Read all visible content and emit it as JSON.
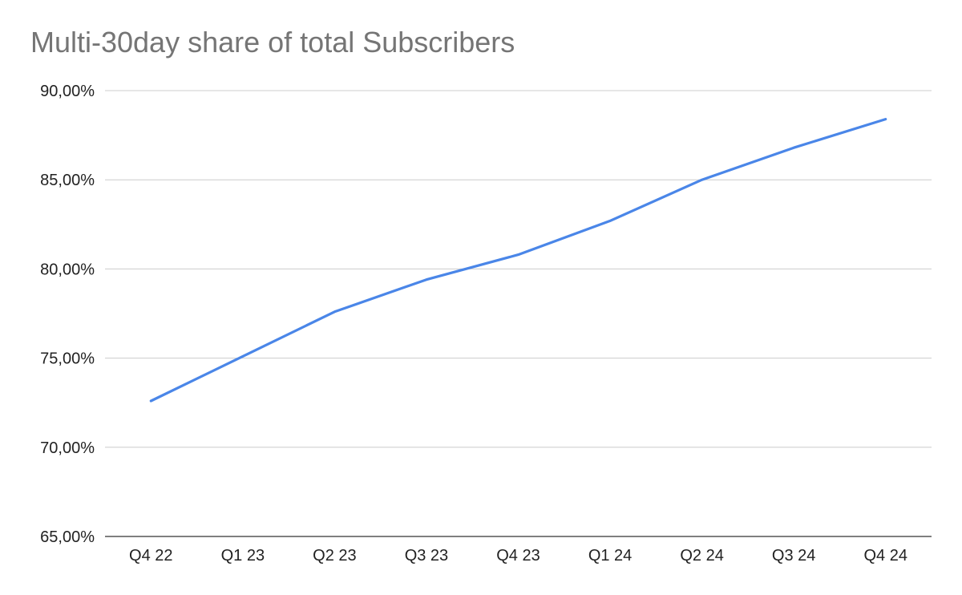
{
  "chart_data": {
    "type": "line",
    "title": "Multi-30day share of total Subscribers",
    "xlabel": "",
    "ylabel": "",
    "categories": [
      "Q4 22",
      "Q1 23",
      "Q2 23",
      "Q3 23",
      "Q4 23",
      "Q1 24",
      "Q2 24",
      "Q3 24",
      "Q4 24"
    ],
    "series": [
      {
        "values": [
          72.6,
          75.1,
          77.6,
          79.4,
          80.8,
          82.7,
          85.0,
          86.8,
          88.4
        ],
        "color": "#4a86e8"
      }
    ],
    "ylim": [
      65,
      90
    ],
    "yticks": [
      65,
      70,
      75,
      80,
      85,
      90
    ],
    "ytick_labels": [
      "65,00%",
      "70,00%",
      "75,00%",
      "80,00%",
      "85,00%",
      "90,00%"
    ],
    "grid": true,
    "legend": "none"
  },
  "colors": {
    "line": "#4a86e8",
    "grid": "#cccccc",
    "axis": "#333333",
    "title": "#757575"
  }
}
